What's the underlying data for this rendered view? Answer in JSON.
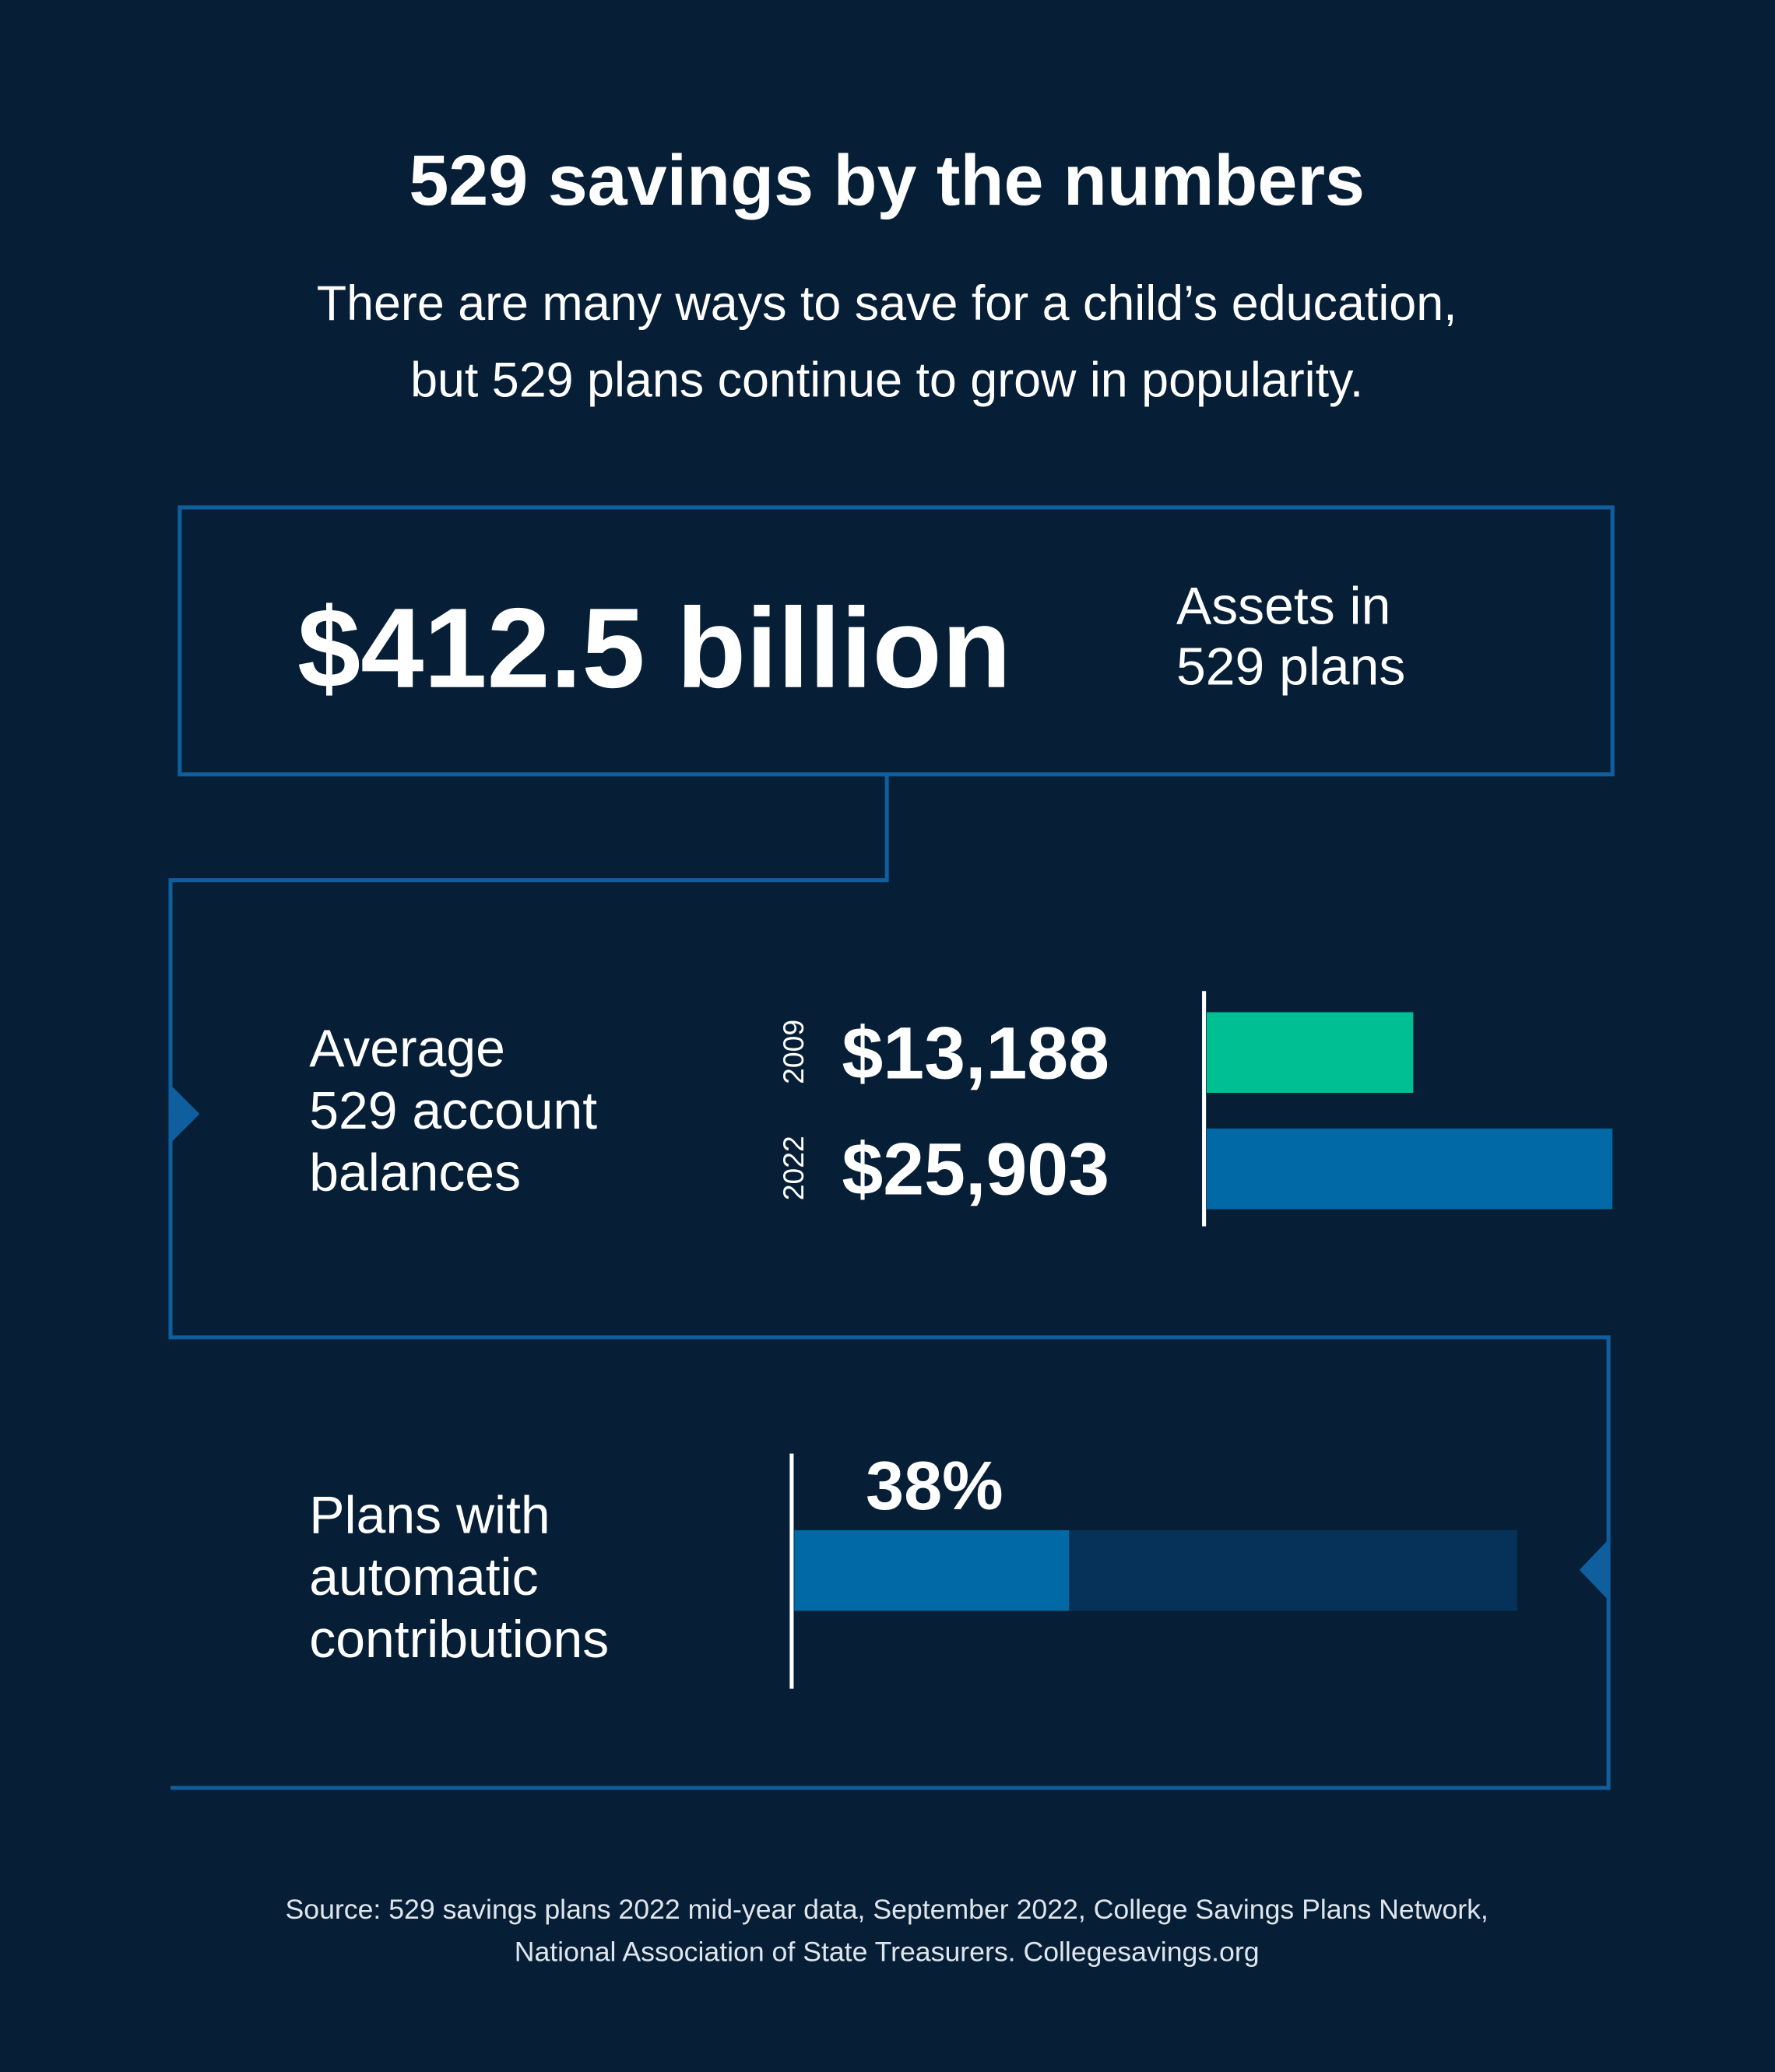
{
  "header": {
    "title": "529 savings by the numbers",
    "subtitle_lines": [
      "There are many ways to save for a child’s education,",
      "but 529 plans continue to grow in popularity."
    ]
  },
  "assets": {
    "value": "$412.5 billion",
    "label_lines": [
      "Assets in",
      "529 plans"
    ]
  },
  "chart_data": [
    {
      "type": "bar",
      "title_lines": [
        "Average",
        "529 account",
        "balances"
      ],
      "categories": [
        "2009",
        "2022"
      ],
      "values": [
        13188,
        25903
      ],
      "value_labels": [
        "$13,188",
        "$25,903"
      ],
      "colors": [
        "#00bf93",
        "#0069a6"
      ]
    },
    {
      "type": "progress",
      "title_lines": [
        "Plans with",
        "automatic",
        "contributions"
      ],
      "values": [
        38
      ],
      "value_labels": [
        "38%"
      ],
      "xlim": [
        0,
        100
      ],
      "color": "#0069a6",
      "track_color": "#06325a"
    }
  ],
  "source_lines": [
    "Source: 529 savings plans 2022 mid-year data, September 2022, College Savings Plans Network,",
    "National Association of State Treasurers. Collegesavings.org"
  ]
}
